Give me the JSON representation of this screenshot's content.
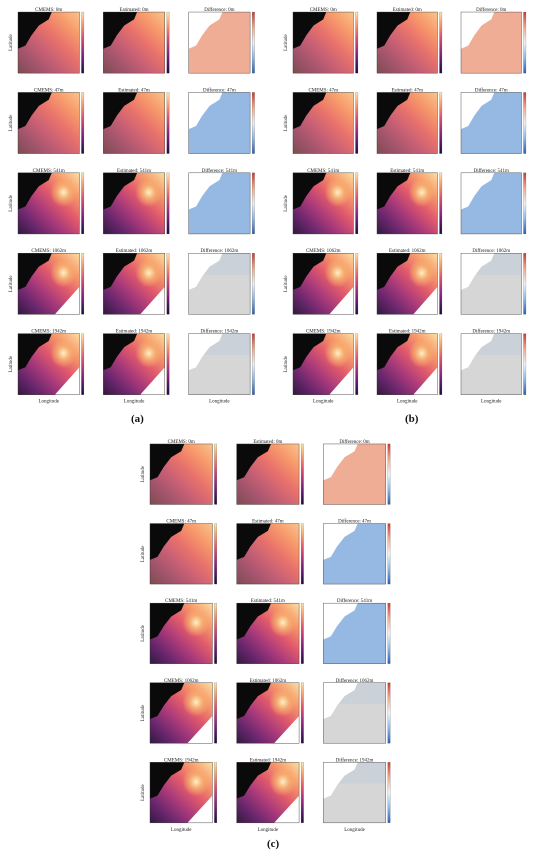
{
  "figure": {
    "labels": [
      "(a)",
      "(b)",
      "(c)"
    ],
    "axis": {
      "ylabel": "Latitude",
      "xlabel": "Longitude"
    },
    "depths": [
      "0m",
      "47m",
      "541m",
      "1062m",
      "1942m"
    ],
    "column_prefixes": [
      "CMEMS",
      "Estimated",
      "Difference"
    ]
  },
  "chart_data": {
    "type": "heatmap",
    "panel_groups": [
      "(a)",
      "(b)",
      "(c)"
    ],
    "rows": [
      {
        "depth": "0m",
        "titles": [
          "CMEMS: 0m",
          "Estimated: 0m",
          "Difference: 0m"
        ]
      },
      {
        "depth": "47m",
        "titles": [
          "CMEMS: 47m",
          "Estimated: 47m",
          "Difference: 47m"
        ]
      },
      {
        "depth": "541m",
        "titles": [
          "CMEMS: 541m",
          "Estimated: 541m",
          "Difference: 541m"
        ]
      },
      {
        "depth": "1062m",
        "titles": [
          "CMEMS: 1062m",
          "Estimated: 1062m",
          "Difference: 1062m"
        ]
      },
      {
        "depth": "1942m",
        "titles": [
          "CMEMS: 1942m",
          "Estimated: 1942m",
          "Difference: 1942m"
        ]
      }
    ],
    "colormaps": {
      "field": "magma",
      "difference": "diverging blue-white-red"
    },
    "colors": {
      "land": "#0a0a0a",
      "masked": "#d6d6d6",
      "field_ramp": [
        "#1b0b3b",
        "#5b1a6e",
        "#a3307c",
        "#e0546b",
        "#f79b6b",
        "#fbe6a9"
      ],
      "diff_ramp": [
        "#2a5fb0",
        "#8fb6e6",
        "#eef2f6",
        "#f2a98f",
        "#c83a2e"
      ]
    }
  }
}
